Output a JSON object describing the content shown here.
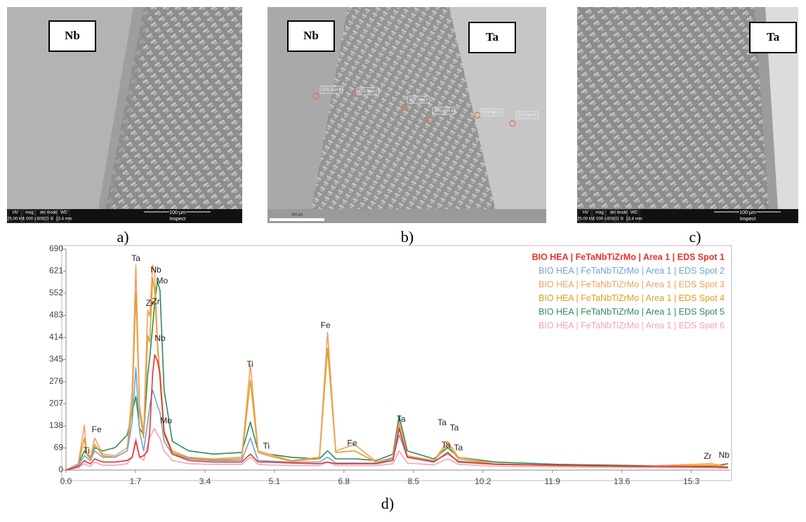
{
  "panels": [
    {
      "label": "a)",
      "tags": [
        "Nb"
      ],
      "info_bar": {
        "headers": [
          "HV",
          "mag",
          "det",
          "mode",
          "WD"
        ],
        "values": [
          "25.00 kV",
          "1 000 x",
          "BSED",
          "B",
          "13.4 mm"
        ],
        "scale": "100 μm",
        "software": "Inspect"
      }
    },
    {
      "label": "b)",
      "tags": [
        "Nb",
        "Ta"
      ],
      "spots": [
        "EDS Spot 1",
        "EDS Spot 2",
        "EDS Spot 3",
        "EDS Spot 4",
        "EDS Spot 5",
        "EDS Spot 6"
      ],
      "scale": "100 μm"
    },
    {
      "label": "c)",
      "tags": [
        "Ta"
      ],
      "info_bar": {
        "headers": [
          "HV",
          "mag",
          "det",
          "mode",
          "WD"
        ],
        "values": [
          "25.00 kV",
          "1 000 x",
          "BSED",
          "B",
          "13.4 mm"
        ],
        "scale": "100 μm",
        "software": "Inspect"
      }
    }
  ],
  "chart_data": {
    "type": "line",
    "panel_label": "d)",
    "legend": "upper right",
    "x": [
      0.0,
      0.3,
      0.45,
      0.5,
      0.6,
      0.7,
      0.9,
      1.2,
      1.5,
      1.62,
      1.71,
      1.8,
      1.9,
      2.0,
      2.05,
      2.12,
      2.17,
      2.24,
      2.3,
      2.4,
      2.6,
      3.0,
      3.6,
      4.3,
      4.51,
      4.7,
      4.95,
      5.5,
      6.2,
      6.4,
      6.6,
      7.06,
      7.6,
      8.0,
      8.15,
      8.35,
      9.0,
      9.34,
      9.6,
      10.5,
      12.0,
      14.0,
      15.8,
      16.2
    ],
    "series": [
      {
        "name": "BIO HEA | FeTaNbTiZrMo | Area 1 | EDS Spot 1",
        "color": "#e8302a",
        "values": [
          0,
          10,
          30,
          25,
          20,
          35,
          25,
          25,
          30,
          40,
          90,
          40,
          45,
          60,
          120,
          300,
          360,
          340,
          300,
          120,
          50,
          30,
          25,
          25,
          50,
          25,
          25,
          22,
          20,
          25,
          20,
          20,
          20,
          30,
          130,
          40,
          25,
          55,
          25,
          18,
          15,
          12,
          10,
          8
        ]
      },
      {
        "name": "BIO HEA | FeTaNbTiZrMo | Area 1 | EDS Spot 2",
        "color": "#6fa3cf",
        "values": [
          0,
          15,
          45,
          40,
          30,
          60,
          40,
          40,
          60,
          150,
          320,
          120,
          60,
          150,
          200,
          250,
          230,
          200,
          180,
          90,
          50,
          35,
          30,
          30,
          100,
          30,
          28,
          25,
          25,
          40,
          22,
          22,
          22,
          35,
          110,
          40,
          28,
          50,
          28,
          18,
          15,
          12,
          10,
          8
        ]
      },
      {
        "name": "BIO HEA | FeTaNbTiZrMo | Area 1 | EDS Spot 3",
        "color": "#f0a060",
        "values": [
          0,
          20,
          140,
          60,
          40,
          100,
          50,
          45,
          70,
          250,
          640,
          200,
          120,
          500,
          480,
          640,
          620,
          400,
          300,
          120,
          60,
          40,
          35,
          40,
          330,
          60,
          50,
          30,
          40,
          430,
          60,
          80,
          25,
          40,
          150,
          45,
          30,
          90,
          40,
          20,
          15,
          12,
          20,
          10
        ]
      },
      {
        "name": "BIO HEA | FeTaNbTiZrMo | Area 1 | EDS Spot 4",
        "color": "#d9a21e",
        "values": [
          0,
          18,
          100,
          50,
          35,
          80,
          45,
          40,
          60,
          200,
          560,
          180,
          100,
          420,
          400,
          600,
          560,
          380,
          280,
          110,
          55,
          38,
          32,
          35,
          280,
          55,
          45,
          28,
          35,
          380,
          55,
          60,
          24,
          38,
          140,
          42,
          28,
          80,
          35,
          18,
          14,
          11,
          15,
          9
        ]
      },
      {
        "name": "BIO HEA | FeTaNbTiZrMo | Area 1 | EDS Spot 5",
        "color": "#2e8b57",
        "values": [
          0,
          20,
          60,
          50,
          40,
          70,
          60,
          70,
          110,
          180,
          230,
          130,
          110,
          300,
          350,
          450,
          520,
          590,
          560,
          250,
          90,
          60,
          50,
          55,
          150,
          60,
          50,
          40,
          35,
          60,
          35,
          35,
          30,
          50,
          170,
          60,
          35,
          70,
          40,
          25,
          18,
          14,
          12,
          20
        ]
      },
      {
        "name": "BIO HEA | FeTaNbTiZrMo | Area 1 | EDS Spot 6",
        "color": "#f4a4b4",
        "values": [
          0,
          8,
          20,
          15,
          12,
          25,
          15,
          15,
          20,
          40,
          100,
          40,
          30,
          80,
          100,
          120,
          130,
          110,
          100,
          60,
          30,
          20,
          18,
          18,
          40,
          18,
          16,
          14,
          14,
          25,
          14,
          14,
          14,
          20,
          60,
          22,
          16,
          35,
          18,
          12,
          10,
          8,
          7,
          6
        ]
      }
    ],
    "xlim": [
      0,
      16.25
    ],
    "ylim": [
      0,
      690
    ],
    "xticks": [
      {
        "value": 0,
        "label": "0.0"
      },
      1.7,
      3.4,
      5.1,
      6.8,
      8.5,
      10.2,
      11.9,
      13.6,
      15.3
    ],
    "yticks": [
      0,
      69,
      138,
      207,
      276,
      345,
      414,
      483,
      552,
      621,
      690
    ],
    "annotations": [
      {
        "text": "Ta",
        "x": 1.71,
        "y": 660
      },
      {
        "text": "Nb",
        "x": 2.2,
        "y": 624
      },
      {
        "text": "Mo",
        "x": 2.35,
        "y": 590
      },
      {
        "text": "Zr",
        "x": 2.05,
        "y": 520
      },
      {
        "text": "Zr",
        "x": 2.2,
        "y": 525
      },
      {
        "text": "Nb",
        "x": 2.3,
        "y": 410
      },
      {
        "text": "Mo",
        "x": 2.45,
        "y": 153
      },
      {
        "text": "Fe",
        "x": 0.75,
        "y": 125
      },
      {
        "text": "Ti",
        "x": 0.5,
        "y": 59
      },
      {
        "text": "Ti",
        "x": 4.5,
        "y": 329
      },
      {
        "text": "Ti",
        "x": 4.9,
        "y": 74
      },
      {
        "text": "Fe",
        "x": 6.35,
        "y": 451
      },
      {
        "text": "Fe",
        "x": 7.0,
        "y": 83
      },
      {
        "text": "Ta",
        "x": 8.2,
        "y": 158
      },
      {
        "text": "Ta",
        "x": 9.2,
        "y": 147
      },
      {
        "text": "Ta",
        "x": 9.5,
        "y": 131
      },
      {
        "text": "Ta",
        "x": 9.3,
        "y": 77
      },
      {
        "text": "Ta",
        "x": 9.6,
        "y": 68
      },
      {
        "text": "Zr",
        "x": 15.7,
        "y": 42
      },
      {
        "text": "Nb",
        "x": 16.1,
        "y": 45
      }
    ]
  }
}
